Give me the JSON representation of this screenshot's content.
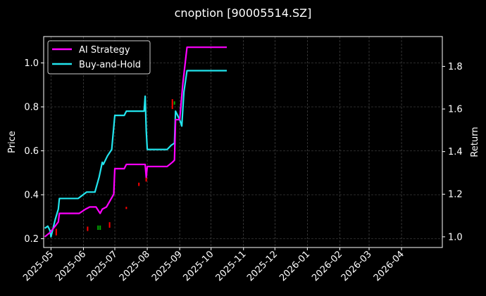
{
  "chart_data": {
    "type": "line",
    "title": "cnoption [90005514.SZ]",
    "ylabel_left": "Price",
    "ylabel_right": "Return",
    "xlabel": "",
    "grid": true,
    "legend_position": "top-left",
    "x_ticks": [
      "2025-05",
      "2025-06",
      "2025-07",
      "2025-08",
      "2025-09",
      "2025-10",
      "2025-11",
      "2025-12",
      "2026-01",
      "2026-02",
      "2026-03",
      "2026-04"
    ],
    "x_range": [
      "2025-04-24",
      "2026-05-10"
    ],
    "ylim_left": [
      0.16,
      1.12
    ],
    "ylim_right": [
      0.95,
      1.94
    ],
    "yticks_left": [
      "0.2",
      "0.4",
      "0.6",
      "0.8",
      "1.0"
    ],
    "yticks_right": [
      "1.0",
      "1.2",
      "1.4",
      "1.6",
      "1.8"
    ],
    "series": [
      {
        "name": "AI Strategy",
        "axis": "right",
        "color": "#ff00ff",
        "points": [
          [
            "2025-04-25",
            1.0
          ],
          [
            "2025-04-30",
            1.02
          ],
          [
            "2025-05-05",
            1.05
          ],
          [
            "2025-05-08",
            1.07
          ],
          [
            "2025-05-09",
            1.11
          ],
          [
            "2025-05-15",
            1.11
          ],
          [
            "2025-05-28",
            1.11
          ],
          [
            "2025-06-03",
            1.13
          ],
          [
            "2025-06-07",
            1.14
          ],
          [
            "2025-06-13",
            1.14
          ],
          [
            "2025-06-17",
            1.11
          ],
          [
            "2025-06-19",
            1.13
          ],
          [
            "2025-06-23",
            1.14
          ],
          [
            "2025-06-30",
            1.2
          ],
          [
            "2025-07-01",
            1.32
          ],
          [
            "2025-07-10",
            1.32
          ],
          [
            "2025-07-12",
            1.34
          ],
          [
            "2025-07-20",
            1.34
          ],
          [
            "2025-07-30",
            1.34
          ],
          [
            "2025-07-31",
            1.28
          ],
          [
            "2025-08-01",
            1.33
          ],
          [
            "2025-08-10",
            1.33
          ],
          [
            "2025-08-20",
            1.33
          ],
          [
            "2025-08-25",
            1.35
          ],
          [
            "2025-08-27",
            1.36
          ],
          [
            "2025-08-28",
            1.55
          ],
          [
            "2025-09-01",
            1.55
          ],
          [
            "2025-09-04",
            1.72
          ],
          [
            "2025-09-08",
            1.89
          ],
          [
            "2025-10-16",
            1.89
          ]
        ]
      },
      {
        "name": "Buy-and-Hold",
        "axis": "right",
        "color": "#22e5ee",
        "points": [
          [
            "2025-04-25",
            1.04
          ],
          [
            "2025-04-28",
            1.05
          ],
          [
            "2025-04-30",
            1.03
          ],
          [
            "2025-05-01",
            1.0
          ],
          [
            "2025-05-05",
            1.08
          ],
          [
            "2025-05-08",
            1.13
          ],
          [
            "2025-05-09",
            1.18
          ],
          [
            "2025-05-27",
            1.18
          ],
          [
            "2025-06-04",
            1.21
          ],
          [
            "2025-06-12",
            1.21
          ],
          [
            "2025-06-16",
            1.28
          ],
          [
            "2025-06-19",
            1.35
          ],
          [
            "2025-06-20",
            1.34
          ],
          [
            "2025-06-24",
            1.38
          ],
          [
            "2025-06-28",
            1.41
          ],
          [
            "2025-07-01",
            1.57
          ],
          [
            "2025-07-10",
            1.57
          ],
          [
            "2025-07-12",
            1.59
          ],
          [
            "2025-07-29",
            1.59
          ],
          [
            "2025-07-30",
            1.66
          ],
          [
            "2025-07-31",
            1.5
          ],
          [
            "2025-08-01",
            1.41
          ],
          [
            "2025-08-20",
            1.41
          ],
          [
            "2025-08-24",
            1.43
          ],
          [
            "2025-08-27",
            1.44
          ],
          [
            "2025-08-28",
            1.59
          ],
          [
            "2025-09-01",
            1.55
          ],
          [
            "2025-09-03",
            1.52
          ],
          [
            "2025-09-05",
            1.68
          ],
          [
            "2025-09-08",
            1.78
          ],
          [
            "2025-10-16",
            1.78
          ]
        ]
      }
    ],
    "candles": [
      {
        "date": "2025-05-06",
        "low": 0.215,
        "high": 0.245,
        "color": "#ff0000"
      },
      {
        "date": "2025-06-05",
        "low": 0.235,
        "high": 0.255,
        "color": "#ff0000"
      },
      {
        "date": "2025-06-15",
        "low": 0.24,
        "high": 0.26,
        "color": "#00aa00"
      },
      {
        "date": "2025-06-17",
        "low": 0.24,
        "high": 0.26,
        "color": "#00aa00"
      },
      {
        "date": "2025-06-26",
        "low": 0.25,
        "high": 0.275,
        "color": "#ff0000"
      },
      {
        "date": "2025-07-12",
        "low": 0.335,
        "high": 0.345,
        "color": "#ff0000"
      },
      {
        "date": "2025-07-24",
        "low": 0.44,
        "high": 0.455,
        "color": "#ff0000"
      },
      {
        "date": "2025-07-31",
        "low": 0.46,
        "high": 0.52,
        "color": "#ff0000"
      },
      {
        "date": "2025-08-25",
        "low": 0.79,
        "high": 0.835,
        "color": "#ff0000"
      },
      {
        "date": "2025-08-27",
        "low": 0.81,
        "high": 0.825,
        "color": "#00aa00"
      }
    ]
  }
}
